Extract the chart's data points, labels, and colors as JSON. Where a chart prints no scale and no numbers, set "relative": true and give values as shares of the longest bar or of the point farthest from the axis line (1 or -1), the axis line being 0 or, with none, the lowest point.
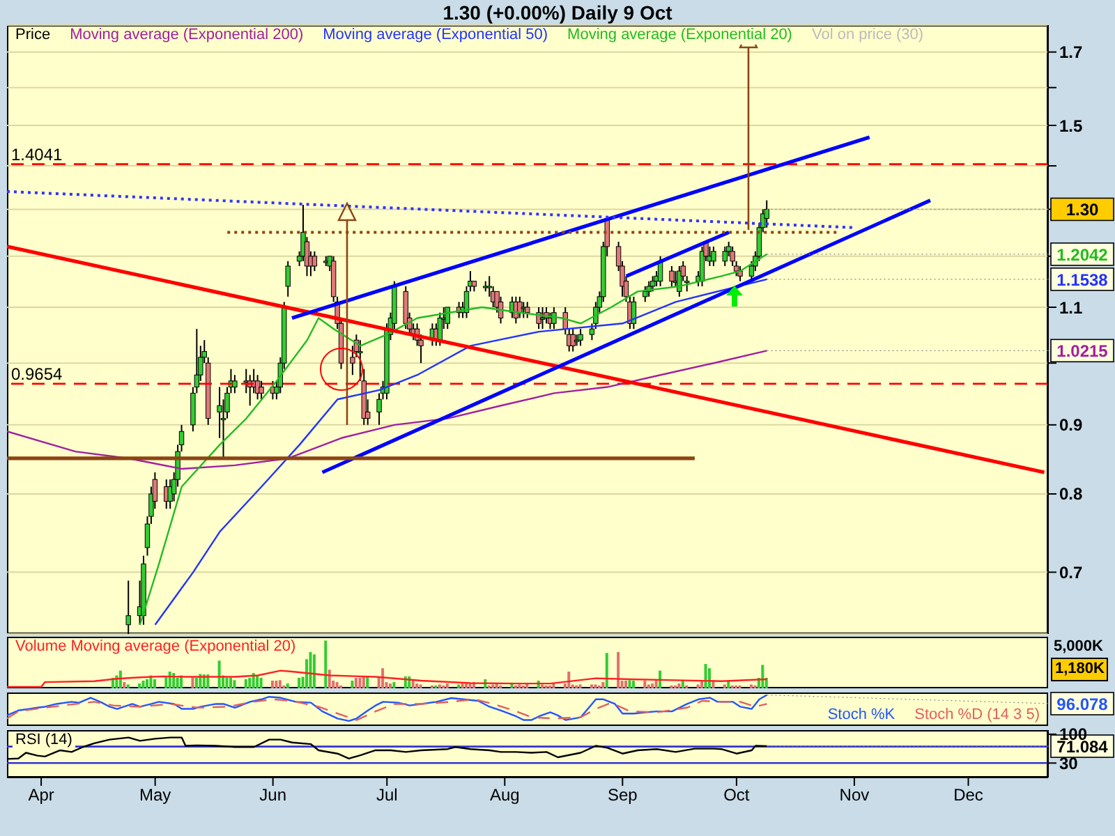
{
  "chart_data": [
    {
      "type": "candlestick",
      "title": "1.30 (+0.00%)  Daily  9 Oct",
      "log": true,
      "grid": "y",
      "legend": "top left",
      "tick_labels": "y",
      "xlim": [
        "--03-23",
        "--12-22"
      ],
      "ylim": [
        0.63,
        1.78
      ],
      "yticks": [
        0.7,
        0.8,
        0.9,
        {
          "value": 1,
          "label": null
        },
        1.1,
        {
          "value": 1.2,
          "label": null
        },
        {
          "value": 1.3,
          "label": null
        },
        {
          "value": 1.4,
          "label": null
        },
        1.5,
        {
          "value": 1.6,
          "label": null
        },
        1.7
      ],
      "x": [
        "--04-24",
        "--04-27",
        "--04-28",
        "--04-29",
        "--04-30",
        "--05-01",
        "--05-04",
        "--05-05",
        "--05-06",
        "--05-07",
        "--05-08",
        "--05-11",
        "--05-12",
        "--05-13",
        "--05-14",
        "--05-15",
        "--05-18",
        "--05-19",
        "--05-20",
        "--05-21",
        "--05-22",
        "--05-25",
        "--05-26",
        "--05-27",
        "--05-28",
        "--05-29",
        "--06-01",
        "--06-02",
        "--06-03",
        "--06-04",
        "--06-05",
        "--06-08",
        "--06-09",
        "--06-10",
        "--06-11",
        "--06-12",
        "--06-15",
        "--06-16",
        "--06-17",
        "--06-18",
        "--06-19",
        "--06-22",
        "--06-23",
        "--06-24",
        "--06-25",
        "--06-26",
        "--06-29",
        "--06-30",
        "--07-01",
        "--07-02",
        "--07-03",
        "--07-06",
        "--07-07",
        "--07-08",
        "--07-09",
        "--07-10",
        "--07-13",
        "--07-14",
        "--07-15",
        "--07-16",
        "--07-17",
        "--07-20",
        "--07-21",
        "--07-22",
        "--07-23",
        "--07-24",
        "--07-27",
        "--07-28",
        "--07-29",
        "--07-30",
        "--07-31",
        "--08-03",
        "--08-04",
        "--08-05",
        "--08-06",
        "--08-07",
        "--08-10",
        "--08-11",
        "--08-12",
        "--08-13",
        "--08-14",
        "--08-17",
        "--08-18",
        "--08-19",
        "--08-20",
        "--08-21",
        "--08-24",
        "--08-25",
        "--08-26",
        "--08-27",
        "--08-28",
        "--08-31",
        "--09-01",
        "--09-02",
        "--09-03",
        "--09-04",
        "--09-07",
        "--09-08",
        "--09-09",
        "--09-10",
        "--09-11",
        "--09-14",
        "--09-15",
        "--09-16",
        "--09-17",
        "--09-18",
        "--09-21",
        "--09-22",
        "--09-23",
        "--09-24",
        "--09-25",
        "--09-28",
        "--09-29",
        "--09-30",
        "--10-01",
        "--10-02",
        "--10-05",
        "--10-06",
        "--10-07",
        "--10-08",
        "--10-09"
      ],
      "ohlc": [
        [
          0.64,
          0.69,
          0.63,
          0.65
        ],
        [
          0.65,
          0.69,
          0.64,
          0.66
        ],
        [
          0.65,
          0.72,
          0.64,
          0.71
        ],
        [
          0.73,
          0.77,
          0.72,
          0.76
        ],
        [
          0.77,
          0.81,
          0.76,
          0.8
        ],
        [
          0.82,
          0.83,
          0.78,
          0.79
        ],
        [
          0.81,
          0.82,
          0.78,
          0.79
        ],
        [
          0.79,
          0.82,
          0.78,
          0.81
        ],
        [
          0.8,
          0.83,
          0.79,
          0.82
        ],
        [
          0.82,
          0.87,
          0.81,
          0.86
        ],
        [
          0.87,
          0.9,
          0.86,
          0.89
        ],
        [
          0.9,
          0.96,
          0.89,
          0.95
        ],
        [
          0.96,
          1.06,
          0.95,
          0.98
        ],
        [
          0.98,
          1.03,
          0.97,
          1.01
        ],
        [
          1.01,
          1.04,
          1.0,
          1.02
        ],
        [
          1.0,
          1.01,
          0.9,
          0.91
        ],
        [
          0.92,
          0.96,
          0.88,
          0.93
        ],
        [
          0.91,
          0.94,
          0.85,
          0.91
        ],
        [
          0.92,
          0.96,
          0.91,
          0.95
        ],
        [
          0.96,
          0.99,
          0.95,
          0.97
        ],
        [
          0.96,
          0.98,
          0.95,
          0.97
        ],
        [
          0.97,
          0.99,
          0.95,
          0.97
        ],
        [
          0.97,
          0.98,
          0.93,
          0.96
        ],
        [
          0.97,
          0.99,
          0.95,
          0.96
        ],
        [
          0.97,
          0.98,
          0.94,
          0.95
        ],
        [
          0.96,
          0.97,
          0.94,
          0.95
        ],
        [
          0.96,
          0.97,
          0.94,
          0.95
        ],
        [
          0.95,
          0.97,
          0.94,
          0.96
        ],
        [
          0.96,
          1.01,
          0.95,
          1.0
        ],
        [
          1.0,
          1.11,
          0.99,
          1.1
        ],
        [
          1.14,
          1.19,
          1.12,
          1.18
        ],
        [
          1.19,
          1.21,
          1.18,
          1.2
        ],
        [
          1.2,
          1.31,
          1.19,
          1.25
        ],
        [
          1.23,
          1.24,
          1.16,
          1.18
        ],
        [
          1.2,
          1.21,
          1.16,
          1.18
        ],
        [
          1.2,
          1.21,
          1.17,
          1.18
        ],
        [
          1.19,
          1.2,
          1.18,
          1.19
        ],
        [
          1.18,
          1.2,
          1.17,
          1.2
        ],
        [
          1.19,
          1.2,
          1.11,
          1.12
        ],
        [
          1.11,
          1.12,
          1.06,
          1.07
        ],
        [
          1.07,
          1.08,
          0.99,
          1.0
        ],
        [
          1.01,
          1.03,
          0.98,
          1.0
        ],
        [
          1.04,
          1.05,
          1.01,
          1.02
        ],
        [
          1.02,
          1.04,
          0.97,
          1.02
        ],
        [
          0.97,
          0.99,
          0.9,
          0.91
        ],
        [
          0.92,
          0.94,
          0.9,
          0.91
        ],
        [
          0.92,
          0.95,
          0.9,
          0.94
        ],
        [
          0.95,
          0.97,
          0.94,
          0.96
        ],
        [
          0.95,
          1.07,
          0.94,
          1.06
        ],
        [
          1.05,
          1.09,
          1.04,
          1.08
        ],
        [
          1.07,
          1.15,
          1.06,
          1.14
        ],
        [
          1.13,
          1.14,
          1.06,
          1.07
        ],
        [
          1.08,
          1.09,
          1.05,
          1.06
        ],
        [
          1.06,
          1.07,
          1.04,
          1.05
        ],
        [
          1.06,
          1.07,
          1.03,
          1.04
        ],
        [
          1.04,
          1.05,
          1.0,
          1.03
        ],
        [
          1.04,
          1.07,
          1.03,
          1.06
        ],
        [
          1.06,
          1.07,
          1.03,
          1.04
        ],
        [
          1.04,
          1.09,
          1.03,
          1.08
        ],
        [
          1.08,
          1.1,
          1.06,
          1.08
        ],
        [
          1.07,
          1.1,
          1.06,
          1.1
        ],
        [
          1.1,
          1.11,
          1.08,
          1.09
        ],
        [
          1.09,
          1.11,
          1.08,
          1.1
        ],
        [
          1.09,
          1.14,
          1.08,
          1.13
        ],
        [
          1.14,
          1.17,
          1.13,
          1.15
        ],
        [
          1.15,
          1.15,
          1.13,
          1.14
        ],
        [
          1.14,
          1.15,
          1.13,
          1.14
        ],
        [
          1.14,
          1.16,
          1.12,
          1.14
        ],
        [
          1.13,
          1.14,
          1.1,
          1.11
        ],
        [
          1.13,
          1.13,
          1.09,
          1.1
        ],
        [
          1.11,
          1.12,
          1.07,
          1.08
        ],
        [
          1.09,
          1.12,
          1.08,
          1.11
        ],
        [
          1.11,
          1.12,
          1.07,
          1.08
        ],
        [
          1.11,
          1.12,
          1.08,
          1.09
        ],
        [
          1.1,
          1.11,
          1.08,
          1.1
        ],
        [
          1.1,
          1.11,
          1.08,
          1.09
        ],
        [
          1.09,
          1.1,
          1.06,
          1.07
        ],
        [
          1.08,
          1.1,
          1.06,
          1.08
        ],
        [
          1.09,
          1.1,
          1.07,
          1.08
        ],
        [
          1.08,
          1.09,
          1.06,
          1.07
        ],
        [
          1.07,
          1.1,
          1.06,
          1.09
        ],
        [
          1.09,
          1.1,
          1.05,
          1.06
        ],
        [
          1.05,
          1.06,
          1.02,
          1.03
        ],
        [
          1.05,
          1.06,
          1.02,
          1.03
        ],
        [
          1.04,
          1.05,
          1.03,
          1.04
        ],
        [
          1.04,
          1.06,
          1.03,
          1.05
        ],
        [
          1.05,
          1.07,
          1.04,
          1.06
        ],
        [
          1.07,
          1.11,
          1.06,
          1.1
        ],
        [
          1.1,
          1.13,
          1.09,
          1.12
        ],
        [
          1.12,
          1.23,
          1.11,
          1.22
        ],
        [
          1.28,
          1.28,
          1.2,
          1.22
        ],
        [
          1.22,
          1.23,
          1.17,
          1.18
        ],
        [
          1.18,
          1.19,
          1.12,
          1.14
        ],
        [
          1.15,
          1.16,
          1.11,
          1.12
        ],
        [
          1.11,
          1.12,
          1.06,
          1.07
        ],
        [
          1.07,
          1.12,
          1.06,
          1.11
        ],
        [
          1.12,
          1.14,
          1.11,
          1.13
        ],
        [
          1.13,
          1.15,
          1.12,
          1.14
        ],
        [
          1.14,
          1.16,
          1.13,
          1.15
        ],
        [
          1.15,
          1.17,
          1.14,
          1.16
        ],
        [
          1.15,
          1.2,
          1.14,
          1.19
        ],
        [
          1.17,
          1.18,
          1.14,
          1.15
        ],
        [
          1.15,
          1.17,
          1.14,
          1.15
        ],
        [
          1.13,
          1.18,
          1.12,
          1.17
        ],
        [
          1.18,
          1.19,
          1.15,
          1.16
        ],
        [
          1.15,
          1.16,
          1.13,
          1.15
        ],
        [
          1.15,
          1.17,
          1.14,
          1.16
        ],
        [
          1.15,
          1.22,
          1.14,
          1.21
        ],
        [
          1.23,
          1.23,
          1.19,
          1.2
        ],
        [
          1.19,
          1.22,
          1.18,
          1.2
        ],
        [
          1.19,
          1.22,
          1.18,
          1.21
        ],
        [
          1.19,
          1.22,
          1.18,
          1.21
        ],
        [
          1.21,
          1.23,
          1.2,
          1.22
        ],
        [
          1.21,
          1.22,
          1.18,
          1.19
        ],
        [
          1.18,
          1.19,
          1.16,
          1.17
        ],
        [
          1.17,
          1.18,
          1.15,
          1.16
        ],
        [
          1.16,
          1.19,
          1.15,
          1.18
        ],
        [
          1.18,
          1.21,
          1.17,
          1.2
        ],
        [
          1.2,
          1.27,
          1.19,
          1.26
        ],
        [
          1.26,
          1.3,
          1.25,
          1.29
        ],
        [
          1.28,
          1.32,
          1.26,
          1.3
        ]
      ],
      "series": [
        {
          "type": "line",
          "name": "Moving average (Exponential 200)",
          "color": "#a020a0",
          "x": [
            "--03-23",
            "--04-10",
            "--04-24",
            "--05-08",
            "--05-22",
            "--06-05",
            "--06-19",
            "--07-03",
            "--07-17",
            "--07-31",
            "--08-14",
            "--08-28",
            "--09-11",
            "--09-25",
            "--10-09"
          ],
          "values": [
            0.89,
            0.86,
            0.85,
            0.835,
            0.84,
            0.85,
            0.88,
            0.9,
            0.91,
            0.93,
            0.95,
            0.96,
            0.98,
            1.0,
            1.0215
          ]
        },
        {
          "type": "line",
          "name": "Moving average (Exponential 50)",
          "color": "#2233ff",
          "x": [
            "--05-01",
            "--05-11",
            "--05-18",
            "--05-29",
            "--06-08",
            "--06-18",
            "--06-29",
            "--07-09",
            "--07-23",
            "--08-10",
            "--09-01",
            "--09-15",
            "--10-09"
          ],
          "values": [
            0.64,
            0.7,
            0.75,
            0.81,
            0.87,
            0.94,
            0.955,
            0.98,
            1.03,
            1.055,
            1.07,
            1.11,
            1.1538
          ]
        },
        {
          "type": "line",
          "name": "Moving average (Exponential 20)",
          "color": "#22bb22",
          "x": [
            "--04-27",
            "--05-02",
            "--05-08",
            "--05-18",
            "--05-25",
            "--06-02",
            "--06-10",
            "--06-13",
            "--06-17",
            "--06-24",
            "--07-01",
            "--07-09",
            "--07-26",
            "--08-05",
            "--08-16",
            "--08-21",
            "--08-29",
            "--09-05",
            "--09-16",
            "--09-27",
            "--10-02",
            "--10-09"
          ],
          "values": [
            0.64,
            0.71,
            0.81,
            0.87,
            0.91,
            0.97,
            1.04,
            1.08,
            1.06,
            1.03,
            1.05,
            1.08,
            1.1,
            1.09,
            1.08,
            1.07,
            1.1,
            1.13,
            1.14,
            1.16,
            1.17,
            1.2042
          ]
        },
        {
          "type": "line",
          "color": "#ff0000",
          "x": [
            "--03-23",
            "--12-21"
          ],
          "values": [
            1.22,
            0.83
          ]
        },
        {
          "type": "line",
          "color": "#0000ff",
          "x": [
            "--06-06",
            "--11-05"
          ],
          "values": [
            1.08,
            1.47
          ]
        },
        {
          "type": "line",
          "color": "#0000ff",
          "x": [
            "--06-14",
            "--11-21"
          ],
          "values": [
            0.83,
            1.32
          ]
        },
        {
          "type": "line",
          "color": "#0000ff",
          "x": [
            "--09-02",
            "--09-29"
          ],
          "values": [
            1.16,
            1.25
          ]
        },
        {
          "type": "line",
          "color": "#3333ff",
          "line_style": "dotted",
          "x": [
            "--03-23",
            "--11-01"
          ],
          "values": [
            1.34,
            1.26
          ]
        },
        {
          "type": "line",
          "color": "#8b4513",
          "line_style": "dotted",
          "x": [
            "--05-20",
            "--10-28"
          ],
          "values": [
            1.25,
            1.25
          ]
        },
        {
          "type": "line",
          "color": "#8b4513",
          "x": [
            "--03-23",
            "--09-20"
          ],
          "values": [
            0.85,
            0.85
          ]
        }
      ],
      "ref_lines": [
        {
          "axis": "y",
          "value": 1.4041,
          "label": "1.4041",
          "color": "#ff0000",
          "line_style": "dashed"
        },
        {
          "axis": "y",
          "value": 0.9654,
          "label": "0.9654",
          "color": "#ff0000",
          "line_style": "dashed"
        }
      ],
      "annotations": [
        "Price",
        "Vol on price (30)",
        {
          "text": "1.30",
          "x": "--10-09",
          "y": 1.3
        },
        {
          "text": "1.2042",
          "x": "--10-09",
          "y": 1.2042
        },
        {
          "text": "1.1538",
          "x": "--10-09",
          "y": 1.1538
        },
        {
          "text": "1.0215",
          "x": "--10-09",
          "y": 1.0215
        }
      ]
    },
    {
      "type": "bar",
      "relative": true,
      "legend": "top left",
      "tick_labels": false,
      "xlim": [
        "--03-23",
        "--12-22"
      ],
      "x": [
        "--04-20",
        "--04-21",
        "--04-22",
        "--04-23",
        "--04-24",
        "--04-27",
        "--04-28",
        "--04-29",
        "--04-30",
        "--05-01",
        "--05-04",
        "--05-05",
        "--05-06",
        "--05-07",
        "--05-08",
        "--05-11",
        "--05-12",
        "--05-13",
        "--05-14",
        "--05-15",
        "--05-18",
        "--05-19",
        "--05-20",
        "--05-21",
        "--05-22",
        "--05-25",
        "--05-26",
        "--05-27",
        "--05-28",
        "--05-29",
        "--06-01",
        "--06-02",
        "--06-03",
        "--06-04",
        "--06-05",
        "--06-08",
        "--06-09",
        "--06-10",
        "--06-11",
        "--06-12",
        "--06-15",
        "--06-16",
        "--06-17",
        "--06-18",
        "--06-19",
        "--06-22",
        "--06-23",
        "--06-24",
        "--06-25",
        "--06-26",
        "--06-29",
        "--06-30",
        "--07-01",
        "--07-02",
        "--07-03",
        "--07-06",
        "--07-07",
        "--07-08",
        "--07-09",
        "--07-10",
        "--07-13",
        "--07-14",
        "--07-15",
        "--07-16",
        "--07-17",
        "--07-20",
        "--07-21",
        "--07-22",
        "--07-23",
        "--07-24",
        "--07-27",
        "--07-28",
        "--07-29",
        "--07-30",
        "--07-31",
        "--08-03",
        "--08-04",
        "--08-05",
        "--08-06",
        "--08-07",
        "--08-10",
        "--08-11",
        "--08-12",
        "--08-13",
        "--08-14",
        "--08-17",
        "--08-18",
        "--08-19",
        "--08-20",
        "--08-21",
        "--08-24",
        "--08-25",
        "--08-26",
        "--08-27",
        "--08-28",
        "--08-31",
        "--09-01",
        "--09-02",
        "--09-03",
        "--09-04",
        "--09-07",
        "--09-08",
        "--09-09",
        "--09-10",
        "--09-11",
        "--09-14",
        "--09-15",
        "--09-16",
        "--09-17",
        "--09-18",
        "--09-21",
        "--09-22",
        "--09-23",
        "--09-24",
        "--09-25",
        "--09-28",
        "--09-29",
        "--09-30",
        "--10-01",
        "--10-02",
        "--10-05",
        "--10-06",
        "--10-07",
        "--10-08",
        "--10-09"
      ],
      "values": [
        0.22,
        0.27,
        0.37,
        0.13,
        0.08,
        0.1,
        0.16,
        0.19,
        0.27,
        0.19,
        0.24,
        0.35,
        0.32,
        0.22,
        0.27,
        0.22,
        0.22,
        0.3,
        0.29,
        0.29,
        0.58,
        0.27,
        0.22,
        0.22,
        0.17,
        0.19,
        0.22,
        0.32,
        0.27,
        0.22,
        0.16,
        0.16,
        0.17,
        0.06,
        0.1,
        0.22,
        0.24,
        0.61,
        0.76,
        0.71,
        1,
        0.39,
        0.16,
        0.13,
        0.06,
        0.16,
        0.22,
        0.22,
        0.25,
        0.25,
        0.22,
        0.42,
        0.13,
        0.1,
        0.13,
        0.25,
        0.25,
        0.17,
        0.1,
        0.08,
        0.06,
        0.06,
        0.08,
        0.06,
        0.1,
        0.08,
        0.1,
        0.1,
        0.1,
        0.13,
        0.19,
        0.06,
        0.08,
        0.1,
        0.06,
        0.1,
        0.06,
        0.08,
        0.06,
        0.1,
        0.16,
        0.08,
        0.06,
        0.06,
        0.1,
        0.1,
        0.35,
        0.08,
        0.06,
        0.08,
        0.08,
        0.08,
        0.06,
        0.13,
        0.74,
        0.76,
        0.16,
        0.16,
        0.17,
        0.16,
        0.16,
        0.08,
        0.1,
        0.16,
        0.37,
        0.06,
        0.06,
        0.1,
        0.17,
        0.06,
        0.08,
        0.16,
        0.51,
        0.42,
        0.16,
        0.08,
        0.16,
        0.06,
        0.06,
        0.06,
        0.08,
        0.06,
        0.22,
        0.49,
        0.22
      ],
      "colors": [
        "#33cc33",
        "#33cc33",
        "#33cc33",
        "#e07070",
        "#33cc33",
        "#33cc33",
        "#33cc33",
        "#33cc33",
        "#33cc33",
        "#33cc33",
        "#33cc33",
        "#33cc33",
        "#33cc33",
        "#33cc33",
        "#33cc33",
        "#e07070",
        "#33cc33",
        "#33cc33",
        "#33cc33",
        "#33cc33",
        "#33cc33",
        "#33cc33",
        "#33cc33",
        "#33cc33",
        "#33cc33",
        "#33cc33",
        "#33cc33",
        "#33cc33",
        "#33cc33",
        "#33cc33",
        "#e07070",
        "#e07070",
        "#e07070",
        "#e07070",
        "#33cc33",
        "#33cc33",
        "#33cc33",
        "#33cc33",
        "#33cc33",
        "#33cc33",
        "#33cc33",
        "#e07070",
        "#e07070",
        "#e07070",
        "#e07070",
        "#33cc33",
        "#e07070",
        "#e07070",
        "#e07070",
        "#33cc33",
        "#e07070",
        "#e07070",
        "#e07070",
        "#e07070",
        "#33cc33",
        "#33cc33",
        "#33cc33",
        "#e07070",
        "#e07070",
        "#e07070",
        "#e07070",
        "#33cc33",
        "#e07070",
        "#e07070",
        "#e07070",
        "#33cc33",
        "#e07070",
        "#e07070",
        "#e07070",
        "#e07070",
        "#33cc33",
        "#e07070",
        "#e07070",
        "#e07070",
        "#e07070",
        "#33cc33",
        "#e07070",
        "#e07070",
        "#e07070",
        "#e07070",
        "#33cc33",
        "#e07070",
        "#e07070",
        "#e07070",
        "#e07070",
        "#e07070",
        "#e07070",
        "#e07070",
        "#e07070",
        "#e07070",
        "#e07070",
        "#e07070",
        "#e07070",
        "#e07070",
        "#33cc33",
        "#e07070",
        "#e07070",
        "#e07070",
        "#33cc33",
        "#33cc33",
        "#e07070",
        "#e07070",
        "#e07070",
        "#e07070",
        "#33cc33",
        "#e07070",
        "#e07070",
        "#e07070",
        "#33cc33",
        "#e07070",
        "#e07070",
        "#e07070",
        "#33cc33",
        "#33cc33",
        "#e07070",
        "#e07070",
        "#33cc33",
        "#e07070",
        "#e07070",
        "#e07070",
        "#e07070",
        "#e07070",
        "#33cc33",
        "#33cc33",
        "#33cc33"
      ],
      "series": [
        {
          "type": "line",
          "name": "Volume Moving average (Exponential 20)",
          "color": "#ff2020",
          "x": [
            "--03-23",
            "--04-01",
            "--04-02",
            "--04-15",
            "--04-21",
            "--04-27",
            "--05-03",
            "--05-09",
            "--05-22",
            "--05-28",
            "--06-03",
            "--06-06",
            "--06-16",
            "--06-28",
            "--07-10",
            "--07-23",
            "--08-04",
            "--08-13",
            "--08-25",
            "--09-03",
            "--09-15",
            "--09-27",
            "--10-09"
          ],
          "values": [
            0.03,
            0.03,
            0.13,
            0.15,
            0.2,
            0.23,
            0.25,
            0.24,
            0.24,
            0.27,
            0.37,
            0.35,
            0.27,
            0.24,
            0.16,
            0.11,
            0.1,
            0.1,
            0.21,
            0.19,
            0.17,
            0.15,
            0.19
          ]
        }
      ],
      "annotations": [
        "5,000K",
        "1,180K"
      ]
    },
    {
      "type": "line",
      "relative": true,
      "legend": "bottom right",
      "tick_labels": false,
      "xlim": [
        "--03-23",
        "--12-22"
      ],
      "series": [
        {
          "name": "Stoch %K",
          "color": "#2255ff",
          "x": [
            "--03-23",
            "--03-26",
            "--03-29",
            "--03-31",
            "--04-02",
            "--04-05",
            "--04-09",
            "--04-11",
            "--04-14",
            "--04-15",
            "--04-17",
            "--04-19",
            "--04-21",
            "--04-25",
            "--04-27",
            "--04-30",
            "--05-02",
            "--05-06",
            "--05-08",
            "--05-11",
            "--05-13",
            "--05-17",
            "--05-19",
            "--05-22",
            "--05-26",
            "--05-29",
            "--05-31",
            "--06-03",
            "--06-07",
            "--06-11",
            "--06-14",
            "--06-18",
            "--06-21",
            "--06-23",
            "--06-26",
            "--06-28",
            "--06-30",
            "--07-04",
            "--07-07",
            "--07-10",
            "--07-14",
            "--07-18",
            "--07-21",
            "--07-25",
            "--07-28",
            "--07-31",
            "--08-04",
            "--08-06",
            "--08-08",
            "--08-10",
            "--08-13",
            "--08-15",
            "--08-17",
            "--08-21",
            "--08-25",
            "--08-27",
            "--08-30",
            "--09-01",
            "--09-04",
            "--09-07",
            "--09-10",
            "--09-14",
            "--09-18",
            "--09-21",
            "--09-24",
            "--09-26",
            "--09-30",
            "--10-02",
            "--10-05",
            "--10-07",
            "--10-09"
          ],
          "values": [
            0.34,
            0.5,
            0.55,
            0.59,
            0.62,
            0.71,
            0.78,
            0.75,
            0.91,
            0.86,
            0.75,
            0.62,
            0.55,
            0.71,
            0.62,
            0.71,
            0.78,
            0.71,
            0.55,
            0.55,
            0.62,
            0.71,
            0.71,
            0.59,
            0.78,
            0.86,
            0.94,
            0.91,
            0.78,
            0.75,
            0.47,
            0.24,
            0.16,
            0.24,
            0.5,
            0.66,
            0.78,
            0.75,
            0.66,
            0.71,
            0.78,
            0.9,
            0.86,
            0.81,
            0.62,
            0.5,
            0.31,
            0.19,
            0.19,
            0.31,
            0.44,
            0.34,
            0.19,
            0.28,
            0.86,
            0.86,
            0.71,
            0.4,
            0.4,
            0.44,
            0.47,
            0.47,
            0.71,
            0.86,
            0.91,
            0.78,
            0.78,
            0.62,
            0.55,
            0.86,
            1
          ]
        },
        {
          "name": "Stoch %D (14 3 5)",
          "color": "#e06060",
          "line_style": "dashed",
          "x": [
            "--03-23",
            "--03-26",
            "--04-02",
            "--04-10",
            "--04-15",
            "--04-20",
            "--04-27",
            "--05-05",
            "--05-12",
            "--05-20",
            "--05-27",
            "--06-01",
            "--06-06",
            "--06-13",
            "--06-18",
            "--06-23",
            "--06-28",
            "--07-03",
            "--07-10",
            "--07-18",
            "--07-24",
            "--07-29",
            "--08-04",
            "--08-08",
            "--08-14",
            "--08-21",
            "--08-25",
            "--08-29",
            "--09-03",
            "--09-10",
            "--09-18",
            "--09-22",
            "--09-27",
            "--10-02",
            "--10-06",
            "--10-09"
          ],
          "values": [
            0.24,
            0.47,
            0.59,
            0.71,
            0.78,
            0.66,
            0.62,
            0.71,
            0.59,
            0.62,
            0.78,
            0.86,
            0.81,
            0.62,
            0.4,
            0.19,
            0.47,
            0.71,
            0.71,
            0.78,
            0.86,
            0.71,
            0.47,
            0.28,
            0.24,
            0.28,
            0.55,
            0.75,
            0.47,
            0.44,
            0.59,
            0.81,
            0.78,
            0.78,
            0.62,
            0.71
          ]
        }
      ],
      "annotations": [
        {
          "text": "96.078",
          "x": "--10-09",
          "y": 1
        }
      ]
    },
    {
      "type": "line",
      "ylim": [
        -5,
        110
      ],
      "yticks": [
        30,
        100
      ],
      "xlim": [
        "--03-23",
        "--12-22"
      ],
      "xticks": [
        {
          "value": "--04-01",
          "label": "Apr"
        },
        {
          "value": "--05-01",
          "label": "May"
        },
        {
          "value": "--06-01",
          "label": "Jun"
        },
        {
          "value": "--07-01",
          "label": "Jul"
        },
        {
          "value": "--08-01",
          "label": "Aug"
        },
        {
          "value": "--09-01",
          "label": "Sep"
        },
        {
          "value": "--10-01",
          "label": "Oct"
        },
        {
          "value": "--11-01",
          "label": "Nov"
        },
        {
          "value": "--12-01",
          "label": "Dec"
        }
      ],
      "legend": "top left",
      "series": [
        {
          "name": "RSI (14)",
          "color": "#000000",
          "x": [
            "--03-23",
            "--03-26",
            "--03-28",
            "--03-31",
            "--04-02",
            "--04-06",
            "--04-09",
            "--04-12",
            "--04-15",
            "--04-19",
            "--04-24",
            "--04-27",
            "--05-01",
            "--05-05",
            "--05-08",
            "--05-09",
            "--05-12",
            "--05-17",
            "--05-22",
            "--05-27",
            "--05-31",
            "--06-03",
            "--06-06",
            "--06-11",
            "--06-13",
            "--06-18",
            "--06-21",
            "--06-24",
            "--06-28",
            "--07-02",
            "--07-06",
            "--07-10",
            "--07-17",
            "--07-19",
            "--07-23",
            "--07-28",
            "--07-31",
            "--08-04",
            "--08-08",
            "--08-12",
            "--08-15",
            "--08-21",
            "--08-25",
            "--08-28",
            "--09-01",
            "--09-05",
            "--09-10",
            "--09-15",
            "--09-20",
            "--09-25",
            "--09-27",
            "--10-01",
            "--10-05",
            "--10-06",
            "--10-09"
          ],
          "values": [
            40,
            41,
            55,
            48,
            46,
            61,
            57,
            69,
            78,
            87,
            92,
            84,
            89,
            92,
            92,
            72,
            73,
            72,
            69,
            69,
            87,
            87,
            80,
            76,
            61,
            53,
            41,
            49,
            61,
            61,
            57,
            61,
            64,
            69,
            64,
            61,
            57,
            57,
            55,
            57,
            44,
            55,
            72,
            67,
            53,
            61,
            64,
            57,
            65,
            65,
            64,
            53,
            61,
            72,
            71
          ]
        }
      ],
      "ref_lines": [
        {
          "axis": "y",
          "value": 70,
          "color": "#3333cc"
        },
        {
          "axis": "y",
          "value": 30,
          "color": "#3333cc"
        }
      ],
      "annotations": [
        {
          "text": "71.084",
          "x": "--10-09",
          "y": 71
        }
      ]
    }
  ]
}
